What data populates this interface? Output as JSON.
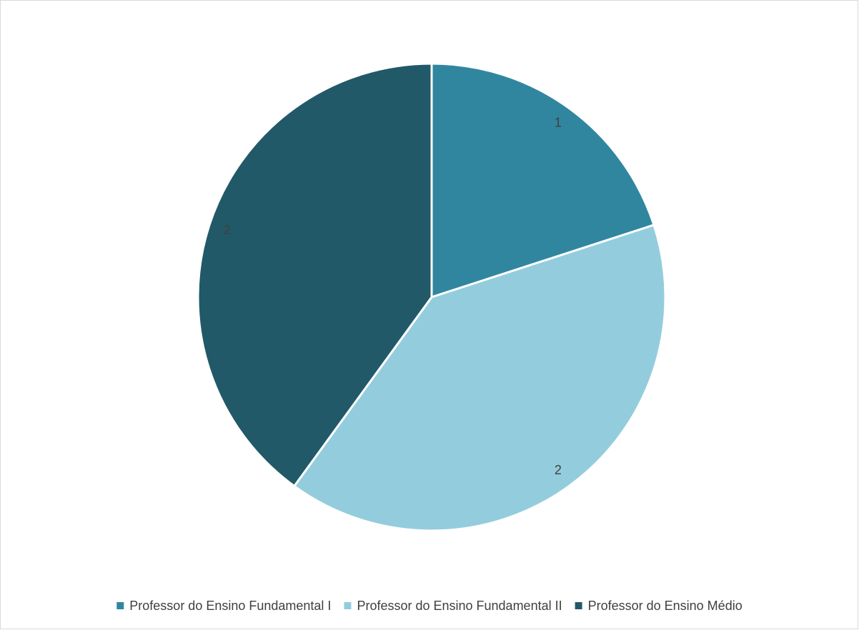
{
  "chart_data": {
    "type": "pie",
    "categories": [
      "Professor do Ensino Fundamental I",
      "Professor do Ensino Fundamental II",
      "Professor do Ensino Médio"
    ],
    "values": [
      1,
      2,
      2
    ],
    "colors": [
      "#31869f",
      "#93cddd",
      "#215968"
    ],
    "legend": "bottom"
  }
}
